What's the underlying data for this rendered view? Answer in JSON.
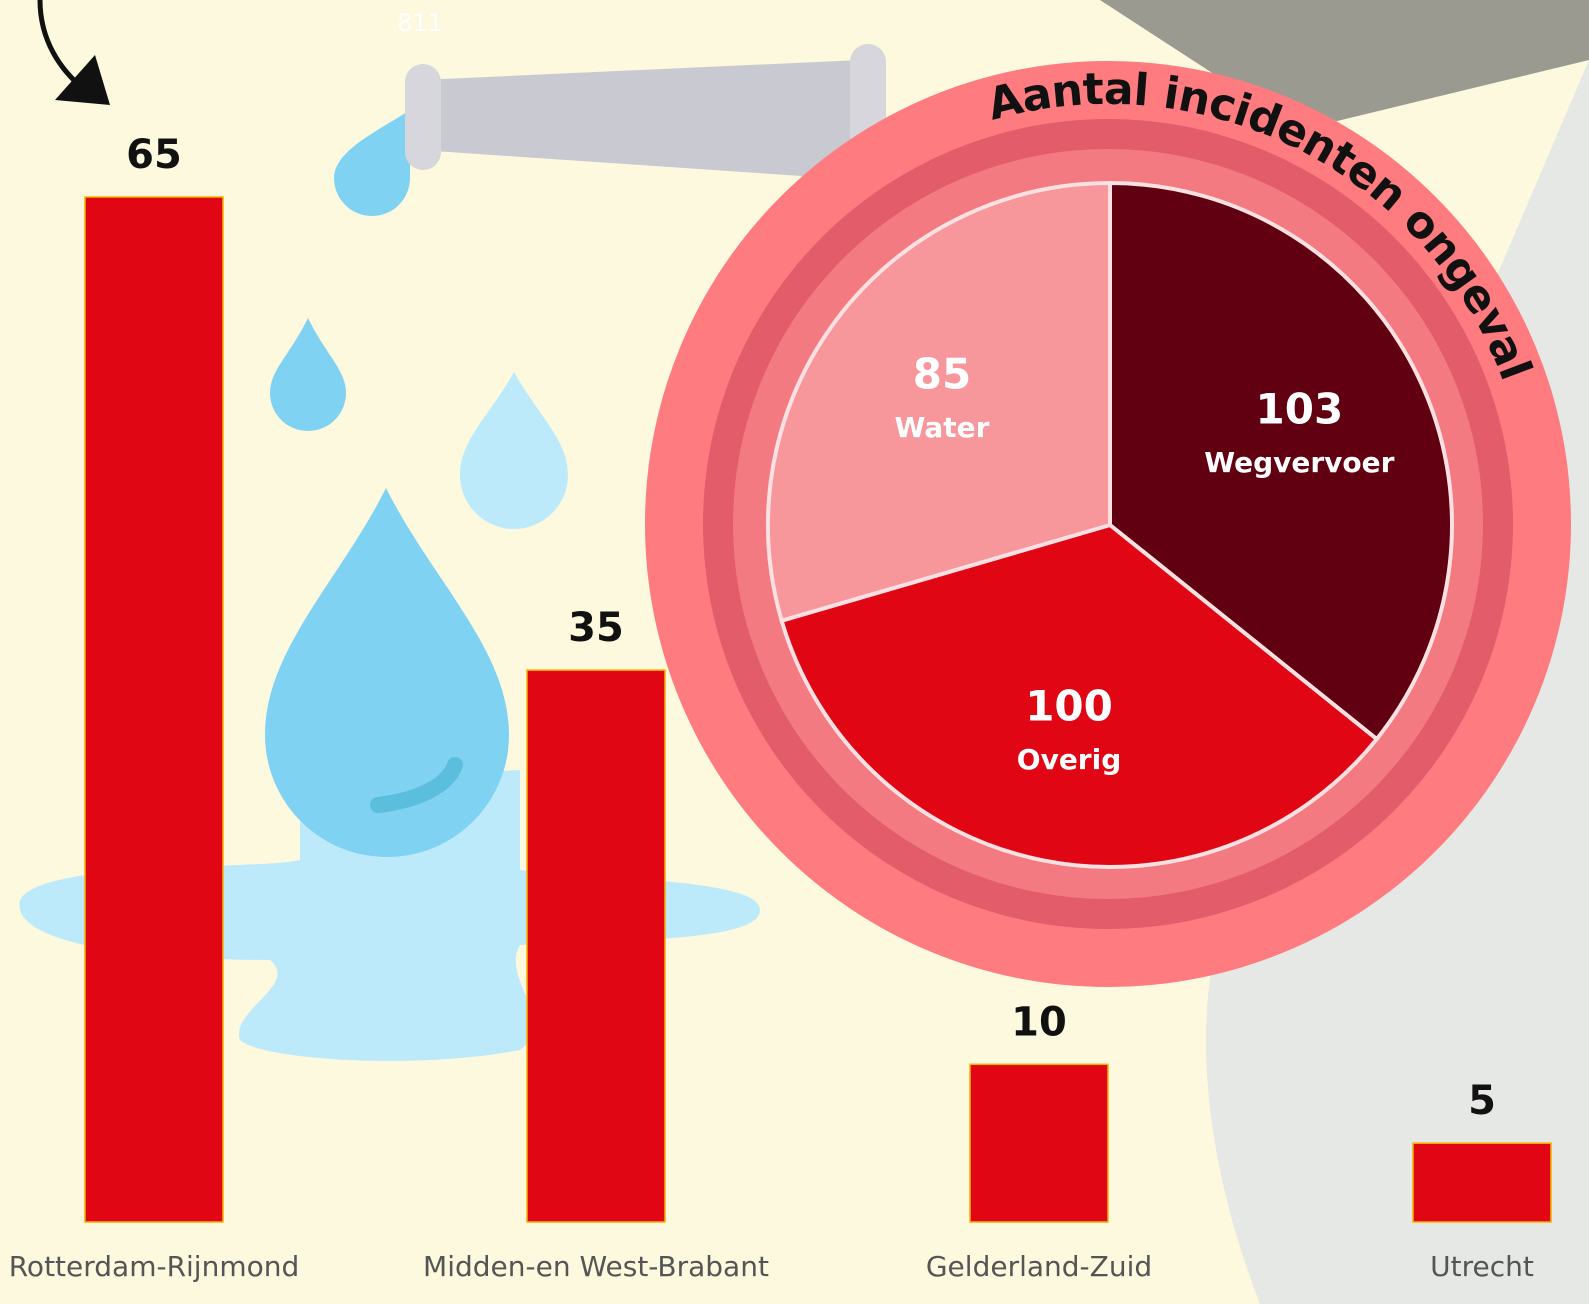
{
  "chart_data": [
    {
      "type": "bar",
      "annotation": "811",
      "categories": [
        "Rotterdam-Rijnmond",
        "Midden-en West-Brabant",
        "Gelderland-Zuid",
        "Utrecht"
      ],
      "values": [
        65,
        35,
        10,
        5
      ],
      "color": "#e00613"
    },
    {
      "type": "pie",
      "title": "Aantal incidenten ongeval",
      "categories": [
        "Wegvervoer",
        "Overig",
        "Water"
      ],
      "values": [
        103,
        100,
        85
      ],
      "colors": [
        "#600010",
        "#e00613",
        "#f7979c"
      ]
    }
  ]
}
